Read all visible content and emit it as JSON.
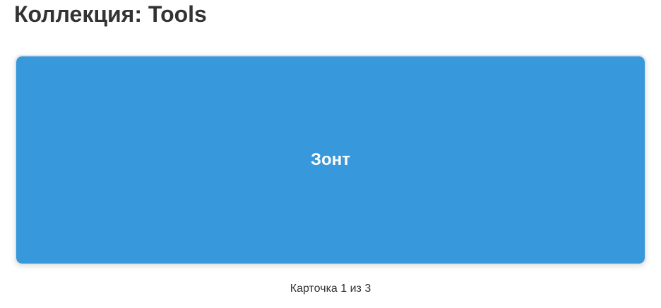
{
  "page": {
    "title": "Коллекция: Tools"
  },
  "card": {
    "text": "Зонт",
    "background_color": "#3798db",
    "text_color": "#ffffff"
  },
  "counter": {
    "text": "Карточка 1 из 3",
    "current": 1,
    "total": 3
  }
}
